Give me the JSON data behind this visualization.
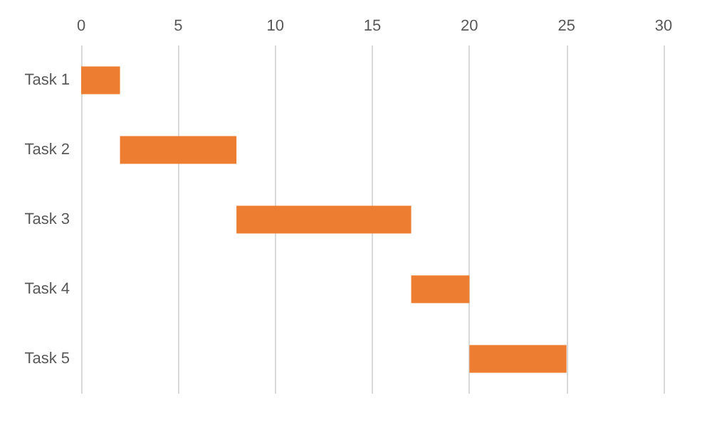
{
  "chart_data": {
    "type": "bar",
    "orientation": "horizontal",
    "categories": [
      "Task 1",
      "Task 2",
      "Task 3",
      "Task 4",
      "Task 5"
    ],
    "base": [
      0,
      2,
      8,
      17,
      20
    ],
    "values": [
      2,
      6,
      9,
      3,
      5
    ],
    "color": "#ed7d31",
    "xlim": [
      0,
      30
    ],
    "xticks": [
      0,
      5,
      10,
      15,
      20,
      25,
      30
    ],
    "grid": "x"
  }
}
